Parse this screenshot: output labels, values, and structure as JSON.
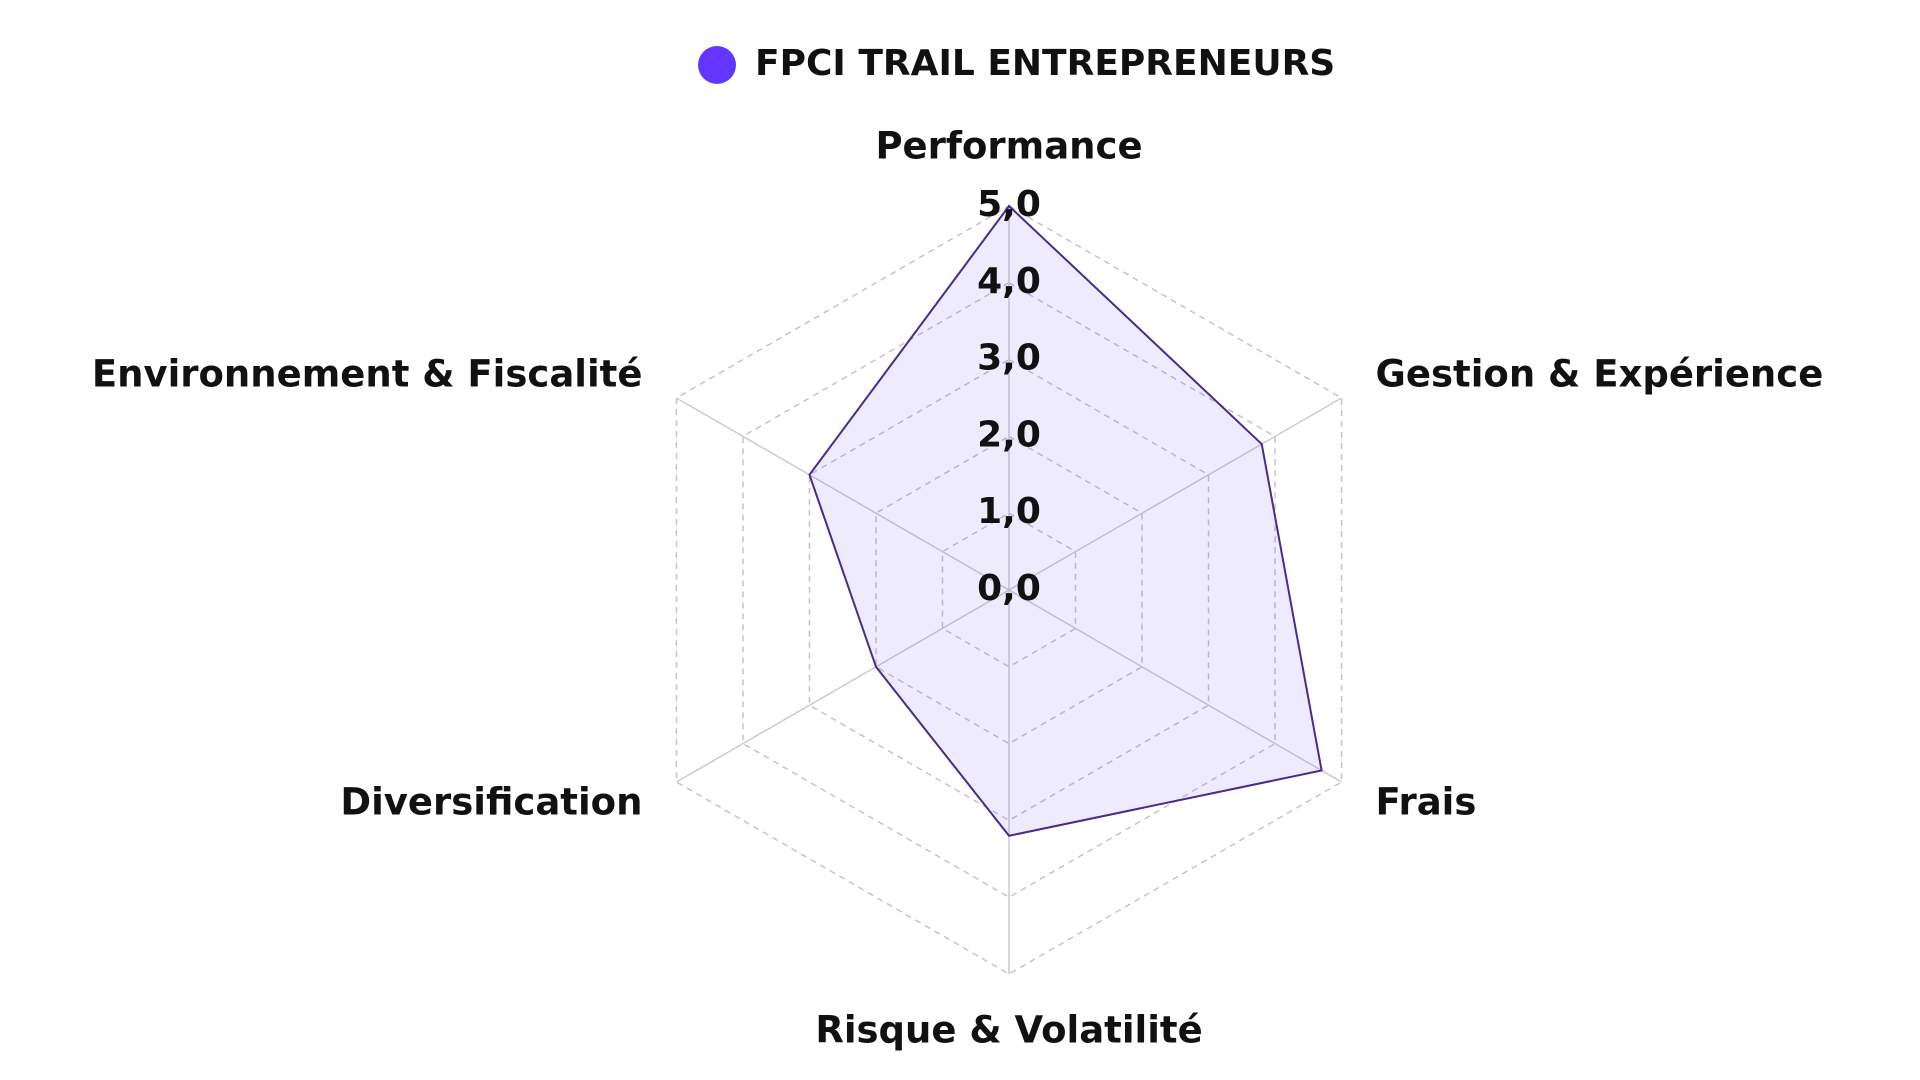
{
  "chart_data": {
    "type": "radar",
    "categories": [
      "Performance",
      "Gestion & Expérience",
      "Frais",
      "Risque & Volatilité",
      "Diversification",
      "Environnement & Fiscalité"
    ],
    "series": [
      {
        "name": "FPCI TRAIL ENTREPRENEURS",
        "color": "#6236ff",
        "values": [
          5.0,
          3.8,
          4.7,
          3.2,
          2.0,
          3.0
        ]
      }
    ],
    "ylim": [
      0,
      5
    ],
    "yticks": [
      {
        "value": 0,
        "label": "0,0"
      },
      {
        "value": 1,
        "label": "1,0"
      },
      {
        "value": 2,
        "label": "2,0"
      },
      {
        "value": 3,
        "label": "3,0"
      },
      {
        "value": 4,
        "label": "4,0"
      },
      {
        "value": 5,
        "label": "5,0"
      }
    ],
    "grid": true,
    "legend": "top"
  }
}
